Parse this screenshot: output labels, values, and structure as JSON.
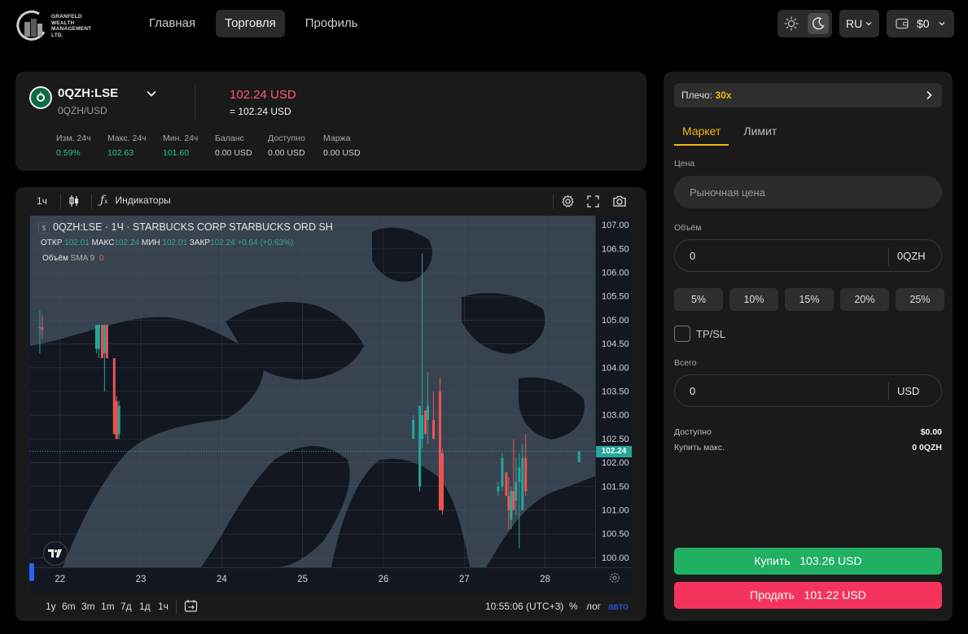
{
  "header": {
    "logo_text": [
      "GRANFELD",
      "WEALTH",
      "MANAGEMENT",
      "LTD."
    ],
    "nav": [
      {
        "label": "Главная",
        "active": false
      },
      {
        "label": "Торговля",
        "active": true
      },
      {
        "label": "Профиль",
        "active": false
      }
    ],
    "theme_icons": [
      "sun-icon",
      "moon-icon"
    ],
    "theme_active": "dark",
    "language": "RU",
    "balance": "$0"
  },
  "instrument": {
    "symbol": "0QZH:LSE",
    "pair": "0QZH/USD",
    "price": "102.24 USD",
    "price_eq": "= 102.24 USD",
    "stats": [
      {
        "label": "Изм. 24ч",
        "value": "0.59%",
        "color": "#26c28f"
      },
      {
        "label": "Макс. 24ч",
        "value": "102.63",
        "color": "#26c28f"
      },
      {
        "label": "Мин. 24ч",
        "value": "101.60",
        "color": "#26c28f"
      },
      {
        "label": "Баланс",
        "value": "0.00 USD",
        "color": "#cfcfcf"
      },
      {
        "label": "Доступно",
        "value": "0.00 USD",
        "color": "#cfcfcf"
      },
      {
        "label": "Маржа",
        "value": "0.00 USD",
        "color": "#cfcfcf"
      }
    ]
  },
  "chart": {
    "interval": "1ч",
    "indicators_label": "Индикаторы",
    "title": "0QZH:LSE · 1Ч · STARBUCKS CORP STARBUCKS ORD SH",
    "ohlc": {
      "o_label": "ОТКР",
      "o": "102.01",
      "h_label": "МАКС",
      "h": "102.24",
      "l_label": "МИН",
      "l": "102.01",
      "c_label": "ЗАКР",
      "c": "102.24",
      "change": "+0.64 (+0.63%)"
    },
    "volume_label": "Объём",
    "sma_label": "SMA 9",
    "sma_value": "0",
    "y_ticks": [
      "107.00",
      "106.50",
      "106.00",
      "105.50",
      "105.00",
      "104.50",
      "104.00",
      "103.50",
      "103.00",
      "102.50",
      "102.00",
      "101.50",
      "101.00",
      "100.50",
      "100.00"
    ],
    "x_ticks": [
      "22",
      "23",
      "24",
      "25",
      "26",
      "27",
      "28"
    ],
    "last_price": "102.24",
    "timeframes": [
      "1y",
      "6m",
      "3m",
      "1m",
      "7д",
      "1д",
      "1ч"
    ],
    "time": "10:55:06 (UTC+3)",
    "scale_options": [
      "%",
      "лог",
      "авто"
    ]
  },
  "chart_data": {
    "type": "candlestick",
    "title": "0QZH:LSE · 1Ч · STARBUCKS CORP STARBUCKS ORD SH",
    "x_ticks": [
      "22",
      "23",
      "24",
      "25",
      "26",
      "27",
      "28"
    ],
    "ylim": [
      99.8,
      107.2
    ],
    "last_price": 102.24,
    "candles": [
      {
        "t": 21.75,
        "o": 104.85,
        "h": 105.2,
        "l": 104.3,
        "c": 104.85
      },
      {
        "t": 21.78,
        "o": 104.85,
        "h": 105.1,
        "l": 104.6,
        "c": 104.8
      },
      {
        "t": 22.45,
        "o": 104.4,
        "h": 104.9,
        "l": 104.3,
        "c": 104.9
      },
      {
        "t": 22.48,
        "o": 104.4,
        "h": 104.9,
        "l": 104.2,
        "c": 104.9
      },
      {
        "t": 22.52,
        "o": 104.9,
        "h": 104.9,
        "l": 104.2,
        "c": 104.2
      },
      {
        "t": 22.55,
        "o": 104.3,
        "h": 104.9,
        "l": 103.5,
        "c": 104.9
      },
      {
        "t": 22.58,
        "o": 104.9,
        "h": 104.9,
        "l": 104.2,
        "c": 104.2
      },
      {
        "t": 22.67,
        "o": 104.2,
        "h": 104.2,
        "l": 102.6,
        "c": 102.6
      },
      {
        "t": 22.7,
        "o": 103.3,
        "h": 103.4,
        "l": 102.5,
        "c": 102.5
      },
      {
        "t": 22.73,
        "o": 102.6,
        "h": 103.3,
        "l": 102.5,
        "c": 103.2
      },
      {
        "t": 26.37,
        "o": 102.5,
        "h": 103.0,
        "l": 102.5,
        "c": 102.9
      },
      {
        "t": 26.45,
        "o": 101.5,
        "h": 103.2,
        "l": 101.4,
        "c": 103.2
      },
      {
        "t": 26.48,
        "o": 102.5,
        "h": 106.4,
        "l": 102.3,
        "c": 103.0
      },
      {
        "t": 26.52,
        "o": 103.1,
        "h": 103.1,
        "l": 102.6,
        "c": 102.6
      },
      {
        "t": 26.55,
        "o": 102.9,
        "h": 103.9,
        "l": 102.4,
        "c": 103.2
      },
      {
        "t": 26.62,
        "o": 102.9,
        "h": 103.5,
        "l": 102.5,
        "c": 102.5
      },
      {
        "t": 26.7,
        "o": 103.5,
        "h": 103.8,
        "l": 101.0,
        "c": 101.0
      },
      {
        "t": 26.73,
        "o": 102.2,
        "h": 102.3,
        "l": 100.9,
        "c": 101.0
      },
      {
        "t": 27.42,
        "o": 101.4,
        "h": 101.6,
        "l": 101.3,
        "c": 101.5
      },
      {
        "t": 27.47,
        "o": 101.5,
        "h": 102.2,
        "l": 101.4,
        "c": 102.1
      },
      {
        "t": 27.52,
        "o": 101.8,
        "h": 101.8,
        "l": 101.3,
        "c": 101.3
      },
      {
        "t": 27.55,
        "o": 101.3,
        "h": 101.7,
        "l": 100.6,
        "c": 101.0
      },
      {
        "t": 27.58,
        "o": 100.8,
        "h": 101.5,
        "l": 100.6,
        "c": 101.4
      },
      {
        "t": 27.61,
        "o": 101.4,
        "h": 102.5,
        "l": 101.0,
        "c": 101.0
      },
      {
        "t": 27.64,
        "o": 101.2,
        "h": 102.1,
        "l": 100.9,
        "c": 101.6
      },
      {
        "t": 27.68,
        "o": 101.6,
        "h": 102.2,
        "l": 100.2,
        "c": 101.9
      },
      {
        "t": 27.72,
        "o": 101.0,
        "h": 102.4,
        "l": 101.0,
        "c": 102.1
      },
      {
        "t": 27.76,
        "o": 102.1,
        "h": 102.6,
        "l": 101.3,
        "c": 101.4
      },
      {
        "t": 28.42,
        "o": 102.01,
        "h": 102.24,
        "l": 102.01,
        "c": 102.24
      }
    ]
  },
  "order": {
    "leverage_label": "Плечо:",
    "leverage_value": "30x",
    "tabs": [
      "Маркет",
      "Лимит"
    ],
    "price_label": "Цена",
    "price_placeholder": "Рыночная цена",
    "volume_label": "Объём",
    "volume_value": "0",
    "volume_unit": "0QZH",
    "percents": [
      "5%",
      "10%",
      "15%",
      "20%",
      "25%"
    ],
    "tpsl_label": "TP/SL",
    "total_label": "Всего",
    "total_value": "0",
    "total_unit": "USD",
    "available_label": "Доступно",
    "available_value": "$0.00",
    "max_buy_label": "Купить макс.",
    "max_buy_value": "0 0QZH",
    "buy_label": "Купить",
    "buy_price": "103.26 USD",
    "sell_label": "Продать",
    "sell_price": "101.22 USD",
    "buy_color": "#21b061",
    "sell_color": "#f5345d"
  }
}
